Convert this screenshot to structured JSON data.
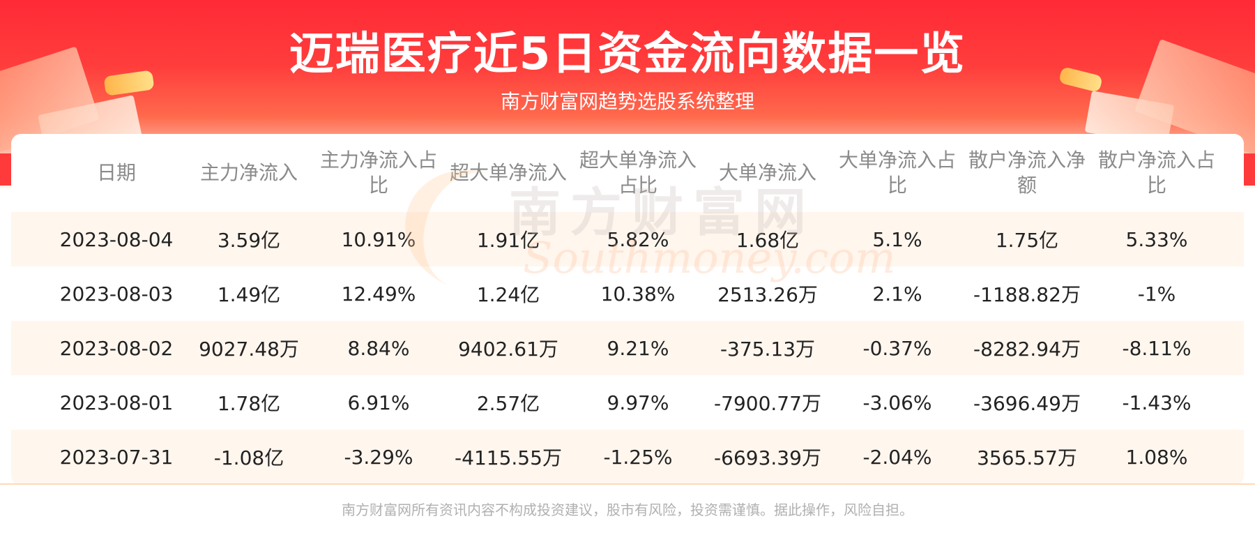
{
  "header": {
    "title": "迈瑞医疗近5日资金流向数据一览",
    "subtitle": "南方财富网趋势选股系统整理"
  },
  "watermark": {
    "cn": "南方财富网",
    "en": "Southmoney.com"
  },
  "table": {
    "columns": [
      "日期",
      "主力净流入",
      "主力净流入占比",
      "超大单净流入",
      "超大单净流入占比",
      "大单净流入",
      "大单净流入占比",
      "散户净流入净额",
      "散户净流入占比"
    ],
    "rows": [
      [
        "2023-08-04",
        "3.59亿",
        "10.91%",
        "1.91亿",
        "5.82%",
        "1.68亿",
        "5.1%",
        "1.75亿",
        "5.33%"
      ],
      [
        "2023-08-03",
        "1.49亿",
        "12.49%",
        "1.24亿",
        "10.38%",
        "2513.26万",
        "2.1%",
        "-1188.82万",
        "-1%"
      ],
      [
        "2023-08-02",
        "9027.48万",
        "8.84%",
        "9402.61万",
        "9.21%",
        "-375.13万",
        "-0.37%",
        "-8282.94万",
        "-8.11%"
      ],
      [
        "2023-08-01",
        "1.78亿",
        "6.91%",
        "2.57亿",
        "9.97%",
        "-7900.77万",
        "-3.06%",
        "-3696.49万",
        "-1.43%"
      ],
      [
        "2023-07-31",
        "-1.08亿",
        "-3.29%",
        "-4115.55万",
        "-1.25%",
        "-6693.39万",
        "-2.04%",
        "3565.57万",
        "1.08%"
      ]
    ]
  },
  "footer": {
    "disclaimer": "南方财富网所有资讯内容不构成投资建议，股市有风险，投资需谨慎。据此操作，风险自担。"
  },
  "colors": {
    "banner_red": "#ff2a36",
    "row_stripe": "#fff6ee",
    "header_text": "#8a8a8a",
    "cell_text": "#222222"
  }
}
